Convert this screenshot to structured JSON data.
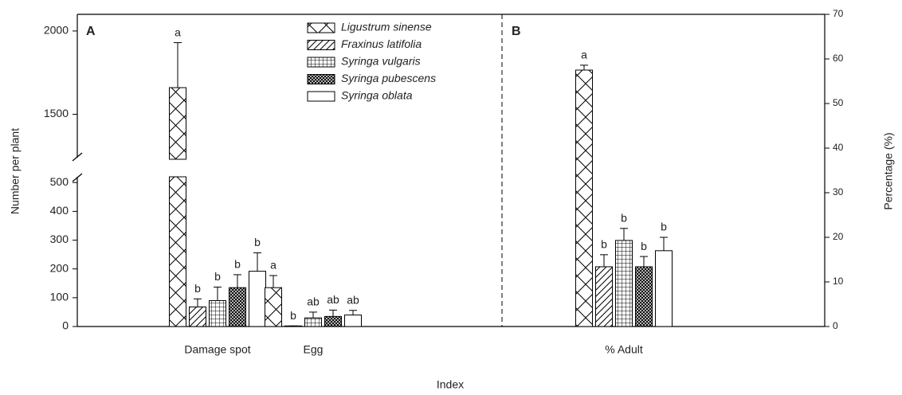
{
  "chart_data": [
    {
      "type": "bar",
      "panel": "A",
      "xlabel": "Index",
      "ylabel": "Number per plant",
      "categories": [
        "Damage spot",
        "Egg"
      ],
      "y_segments": [
        {
          "ylim": [
            0,
            520
          ],
          "yticks": [
            0,
            100,
            200,
            300,
            400,
            500
          ]
        },
        {
          "ylim": [
            1230,
            2100
          ],
          "yticks": [
            1500,
            2000
          ]
        }
      ],
      "legend_position": "upper center",
      "series": [
        {
          "name": "Ligustrum sinense",
          "color": "#000000",
          "pattern": "crosshatch",
          "values": [
            1660,
            135
          ],
          "errors": [
            270,
            42
          ],
          "letters": [
            "a",
            "a"
          ]
        },
        {
          "name": "Fraxinus latifolia",
          "color": "#000000",
          "pattern": "diagonal",
          "values": [
            68,
            2
          ],
          "errors": [
            28,
            0
          ],
          "letters": [
            "b",
            "b"
          ]
        },
        {
          "name": "Syringa vulgaris",
          "color": "#000000",
          "pattern": "grid",
          "values": [
            90,
            30
          ],
          "errors": [
            47,
            20
          ],
          "letters": [
            "b",
            "ab"
          ]
        },
        {
          "name": "Syringa pubescens",
          "color": "#000000",
          "pattern": "dense",
          "values": [
            135,
            35
          ],
          "errors": [
            45,
            22
          ],
          "letters": [
            "b",
            "ab"
          ]
        },
        {
          "name": "Syringa oblata",
          "color": "#000000",
          "pattern": "none",
          "values": [
            192,
            40
          ],
          "errors": [
            64,
            16
          ],
          "letters": [
            "b",
            "ab"
          ]
        }
      ]
    },
    {
      "type": "bar",
      "panel": "B",
      "y2label": "Percentage (%)",
      "categories": [
        "% Adult"
      ],
      "y2lim": [
        0,
        70
      ],
      "y2ticks": [
        0,
        10,
        20,
        30,
        40,
        50,
        60,
        70
      ],
      "series": [
        {
          "axis": "y2",
          "color": "#000000",
          "pattern": "crosshatch",
          "values": [
            57.5
          ],
          "errors": [
            1.1
          ],
          "letters": [
            "a"
          ]
        },
        {
          "axis": "y2",
          "color": "#000000",
          "pattern": "diagonal",
          "values": [
            13.4
          ],
          "errors": [
            2.7
          ],
          "letters": [
            "b"
          ]
        },
        {
          "axis": "y2",
          "color": "#000000",
          "pattern": "grid",
          "values": [
            19.3
          ],
          "errors": [
            2.7
          ],
          "letters": [
            "b"
          ]
        },
        {
          "axis": "y2",
          "color": "#000000",
          "pattern": "dense",
          "values": [
            13.4
          ],
          "errors": [
            2.3
          ],
          "letters": [
            "b"
          ]
        },
        {
          "axis": "y2",
          "color": "#000000",
          "pattern": "none",
          "values": [
            17
          ],
          "errors": [
            3
          ],
          "letters": [
            "b"
          ]
        }
      ]
    }
  ]
}
